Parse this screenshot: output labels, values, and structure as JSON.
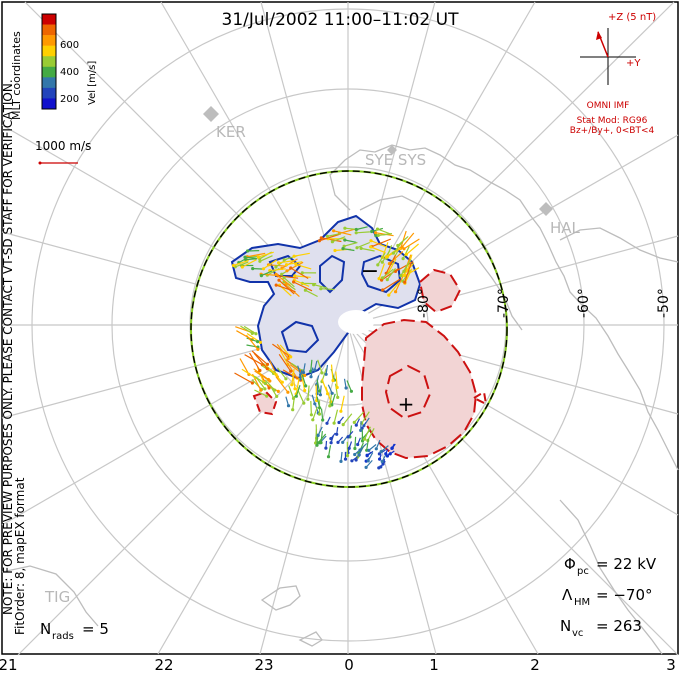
{
  "title": "31/Jul/2002 11:00–11:02 UT",
  "colorbar": {
    "coord_label": "MLT coordinates",
    "axis_label": "Vel [m/s]",
    "ticks": [
      "600",
      "400",
      "200"
    ],
    "colors": [
      "#cc0000",
      "#ee6600",
      "#ff9900",
      "#ffd000",
      "#99cc33",
      "#44aa44",
      "#3377aa",
      "#2244bb",
      "#1111cc"
    ]
  },
  "scale": {
    "label": "1000 m/s"
  },
  "watermark": "NOTE: FOR PREVIEW PURPOSES ONLY. PLEASE CONTACT VT-SD STAFF FOR VERIFICATION.",
  "fit_info": "FitOrder: 8, mapEX format",
  "imf": {
    "z_label": "+Z (5 nT)",
    "y_label": "+Y",
    "source": "OMNI IMF",
    "model_line1": "Stat Mod: RG96",
    "model_line2": "Bz+/By+, 0<BT<4"
  },
  "stations": [
    "KER",
    "SYE SYS",
    "HAL",
    "TIG"
  ],
  "lat_labels": [
    "-80°",
    "-70°",
    "-60°",
    "-50°"
  ],
  "mlt_labels": [
    "21",
    "22",
    "23",
    "0",
    "1",
    "2",
    "3"
  ],
  "stats": {
    "phi_pc": {
      "sym": "Φ",
      "sub": "pc",
      "value": "= 22 kV"
    },
    "lambda_hm": {
      "sym": "Λ",
      "sub": "HM",
      "value": "= −70°"
    },
    "n_vc": {
      "sym": "N",
      "sub": "vc",
      "value": "= 263"
    },
    "n_rads": {
      "sym": "N",
      "sub": "rads",
      "value": "= 5"
    }
  },
  "cells": {
    "neg_marker": "−",
    "pos_marker": "+"
  },
  "colors": {
    "pos_cell": "#f2d4d4",
    "neg_cell": "#dfe0ee",
    "pos_line": "#cc1111",
    "neg_line": "#1133aa",
    "grid": "#c8c8c8",
    "hmb": "#88cc22"
  }
}
